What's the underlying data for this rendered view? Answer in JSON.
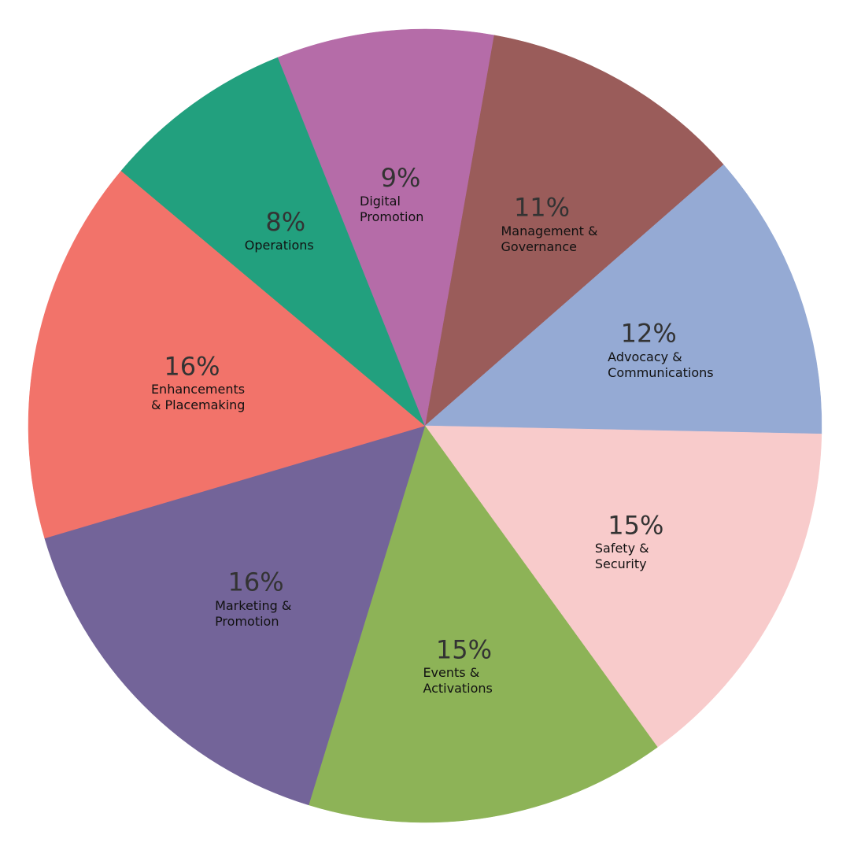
{
  "chart_data": {
    "type": "pie",
    "categories": [
      "Management & Governance",
      "Advocacy & Communications",
      "Safety & Security",
      "Events & Activations",
      "Marketing & Promotion",
      "Enhancements & Placemaking",
      "Operations",
      "Digital Promotion"
    ],
    "values": [
      11,
      12,
      15,
      15,
      16,
      16,
      8,
      9
    ],
    "value_labels": [
      "11%",
      "12%",
      "15%",
      "15%",
      "16%",
      "16%",
      "8%",
      "9%"
    ],
    "colors": [
      "#9a5c5a",
      "#95aad4",
      "#f8cbcb",
      "#8db357",
      "#736499",
      "#f2736a",
      "#22a07e",
      "#b56ca8"
    ]
  }
}
